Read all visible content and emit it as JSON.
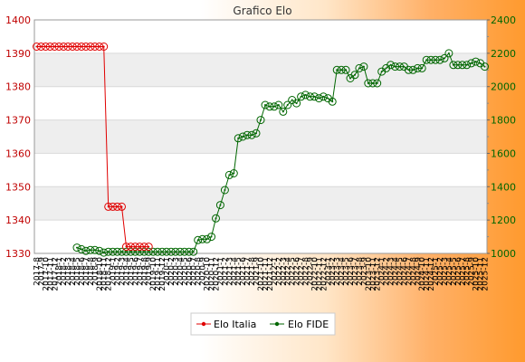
{
  "chart_data": {
    "type": "line",
    "title": "Grafico Elo",
    "left_axis": {
      "min": 1330,
      "max": 1400,
      "ticks": [
        1330,
        1340,
        1350,
        1360,
        1370,
        1380,
        1390,
        1400
      ],
      "color": "#c00000"
    },
    "right_axis": {
      "min": 1000,
      "max": 2400,
      "ticks": [
        1000,
        1200,
        1400,
        1600,
        1800,
        2000,
        2200,
        2400
      ],
      "color": "#006600"
    },
    "legend": {
      "placement": "bottom-center"
    },
    "grid": true,
    "colors": {
      "elo_italia": "#e00000",
      "elo_fide": "#006600",
      "band": "#eeeeee"
    },
    "x_tick_labels": [
      "2017-8",
      "2017-9",
      "2017-10",
      "2017-11",
      "2017-12",
      "2018-1",
      "2018-2",
      "2018-3",
      "2018-4",
      "2018-5",
      "2018-6",
      "2018-7",
      "2018-8",
      "2018-9",
      "2018-10",
      "2018-11",
      "2018-12",
      "2019-1",
      "2019-2",
      "2019-3",
      "2019-4",
      "2019-5",
      "2019-6",
      "2019-7",
      "2019-8",
      "2019-9",
      "2019-10",
      "2019-11",
      "2019-12",
      "2020-1",
      "2020-2",
      "2020-3",
      "2020-4",
      "2020-5",
      "2020-6",
      "2020-7",
      "2020-8",
      "2020-9",
      "2020-10",
      "2020-11",
      "2020-12",
      "2021-1",
      "2021-2",
      "2021-3",
      "2021-4",
      "2021-5",
      "2021-6",
      "2021-7",
      "2021-8",
      "2021-9",
      "2021-10",
      "2021-11",
      "2021-12",
      "2022-1",
      "2022-2",
      "2022-3",
      "2022-4",
      "2022-5",
      "2022-6",
      "2022-7",
      "2022-8",
      "2022-9",
      "2022-10",
      "2022-11",
      "2022-12",
      "2023-1",
      "2023-2",
      "2023-3",
      "2023-4",
      "2023-5",
      "2023-6",
      "2023-7",
      "2023-8",
      "2023-9",
      "2023-10",
      "2023-11",
      "2023-12",
      "2024-1",
      "2024-2",
      "2024-3",
      "2024-4",
      "2024-5",
      "2024-6",
      "2024-7",
      "2024-8",
      "2024-9",
      "2024-10",
      "2024-11",
      "2024-12",
      "2025-1",
      "2025-2",
      "2025-3",
      "2025-4",
      "2025-5",
      "2025-6",
      "2025-7",
      "2025-8",
      "2025-9",
      "2025-10",
      "2025-11",
      "2025-12"
    ],
    "series": [
      {
        "name": "Elo Italia",
        "axis": "left",
        "values": [
          1392,
          1392,
          1392,
          1392,
          1392,
          1392,
          1392,
          1392,
          1392,
          1392,
          1392,
          1392,
          1392,
          1392,
          1392,
          1392,
          1344,
          1344,
          1344,
          1344,
          1332,
          1332,
          1332,
          1332,
          1332,
          1332
        ]
      },
      {
        "name": "Elo FIDE",
        "axis": "right",
        "values": [
          1035,
          1025,
          1015,
          1020,
          1020,
          1015,
          1005,
          1010,
          1010,
          1010,
          1010,
          1010,
          1010,
          1010,
          1010,
          1010,
          1010,
          1010,
          1010,
          1010,
          1010,
          1010,
          1010,
          1010,
          1010,
          1010,
          1010,
          1080,
          1085,
          1085,
          1100,
          1210,
          1290,
          1380,
          1470,
          1480,
          1690,
          1700,
          1710,
          1710,
          1720,
          1800,
          1890,
          1880,
          1880,
          1890,
          1850,
          1890,
          1920,
          1900,
          1940,
          1950,
          1940,
          1940,
          1930,
          1940,
          1930,
          1910,
          2100,
          2100,
          2100,
          2050,
          2070,
          2110,
          2120,
          2020,
          2020,
          2020,
          2090,
          2110,
          2130,
          2120,
          2120,
          2120,
          2100,
          2100,
          2110,
          2110,
          2160,
          2160,
          2160,
          2160,
          2170,
          2200,
          2130,
          2130,
          2130,
          2130,
          2140,
          2150,
          2140,
          2120
        ]
      }
    ]
  }
}
